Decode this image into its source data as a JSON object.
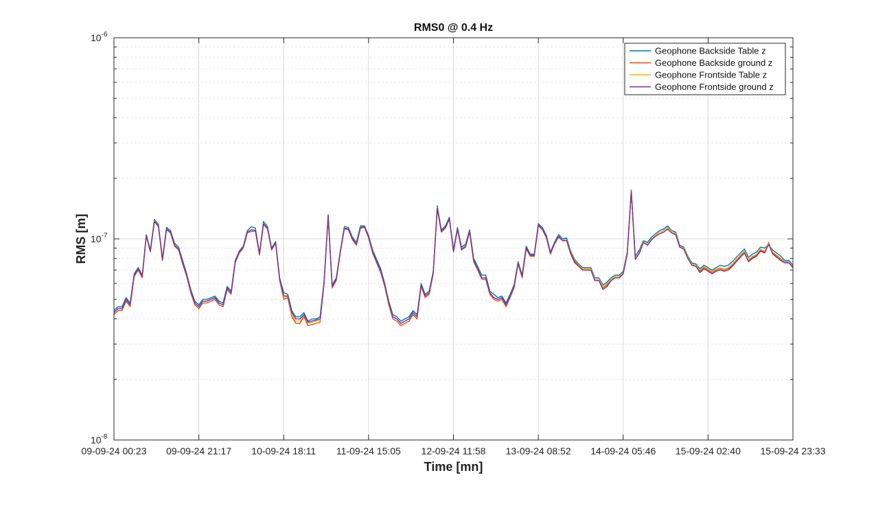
{
  "chart_data": {
    "type": "line",
    "title": "RMS0 @ 0.4 Hz",
    "xlabel": "Time [mn]",
    "ylabel": "RMS [m]",
    "yscale": "log",
    "ylim": [
      1e-08,
      1e-06
    ],
    "ytick_labels": [
      {
        "base": "10",
        "exp": "-8"
      },
      {
        "base": "10",
        "exp": "-7"
      },
      {
        "base": "10",
        "exp": "-6"
      }
    ],
    "x_tick_labels": [
      "09-09-24 00:23",
      "09-09-24 21:17",
      "10-09-24 18:11",
      "11-09-24 15:05",
      "12-09-24 11:58",
      "13-09-24 08:52",
      "14-09-24 05:46",
      "15-09-24 02:40",
      "15-09-24 23:33"
    ],
    "grid": true,
    "minor_grid": true,
    "legend_position": "top-right",
    "x_step_minutes": 60,
    "series": [
      {
        "name": "Geophone Backside Table z",
        "color": "#0072BD",
        "values": [
          4.4e-08,
          4.6e-08,
          4.6e-08,
          5.1e-08,
          4.8e-08,
          6.7e-08,
          7.2e-08,
          6.6e-08,
          1.05e-07,
          8.8e-08,
          1.25e-07,
          1.18e-07,
          8e-08,
          1.14e-07,
          1.1e-07,
          9.5e-08,
          9.1e-08,
          7.8e-08,
          6.7e-08,
          5.6e-08,
          4.9e-08,
          4.7e-08,
          5e-08,
          5e-08,
          5.1e-08,
          5.2e-08,
          4.9e-08,
          4.8e-08,
          5.8e-08,
          5.5e-08,
          7.8e-08,
          8.7e-08,
          9.2e-08,
          1.1e-07,
          1.15e-07,
          1.13e-07,
          8.5e-08,
          1.22e-07,
          1.15e-07,
          9e-08,
          9.7e-08,
          6.4e-08,
          5.4e-08,
          5.3e-08,
          4.4e-08,
          4.1e-08,
          4.1e-08,
          4.3e-08,
          3.9e-08,
          4e-08,
          4e-08,
          4.1e-08,
          6.2e-08,
          1.32e-07,
          5.9e-08,
          6.4e-08,
          8.7e-08,
          1.15e-07,
          1.14e-07,
          1.02e-07,
          9.6e-08,
          1.16e-07,
          1.16e-07,
          1.04e-07,
          8.8e-08,
          7.9e-08,
          7.1e-08,
          6e-08,
          4.9e-08,
          4.2e-08,
          4.1e-08,
          3.9e-08,
          4e-08,
          4.1e-08,
          4.4e-08,
          4.2e-08,
          6e-08,
          5.3e-08,
          5.5e-08,
          6.9e-08,
          1.46e-07,
          1.11e-07,
          1.16e-07,
          1.28e-07,
          8.8e-08,
          1.14e-07,
          9.1e-08,
          9.4e-08,
          1.11e-07,
          8e-08,
          7.3e-08,
          6.6e-08,
          6.6e-08,
          5.5e-08,
          5.3e-08,
          5.1e-08,
          5.2e-08,
          4.8e-08,
          5.3e-08,
          5.9e-08,
          7.7e-08,
          6.6e-08,
          9.2e-08,
          8.4e-08,
          8.4e-08,
          1.19e-07,
          1.14e-07,
          1.04e-07,
          8.6e-08,
          9.6e-08,
          1.05e-07,
          1e-07,
          1.01e-07,
          8.7e-08,
          7.9e-08,
          7.5e-08,
          7.2e-08,
          7.2e-08,
          7.2e-08,
          6.4e-08,
          6.4e-08,
          5.9e-08,
          6.1e-08,
          6.4e-08,
          6.6e-08,
          6.6e-08,
          6.9e-08,
          8.6e-08,
          1.75e-07,
          8.2e-08,
          8.8e-08,
          9.8e-08,
          9.6e-08,
          1.02e-07,
          1.06e-07,
          1.1e-07,
          1.12e-07,
          1.16e-07,
          1.1e-07,
          1.08e-07,
          9.3e-08,
          9.1e-08,
          8.2e-08,
          7.6e-08,
          7.5e-08,
          7.1e-08,
          7.4e-08,
          7.2e-08,
          7e-08,
          7.2e-08,
          7.4e-08,
          7.3e-08,
          7.4e-08,
          7.7e-08,
          8.1e-08,
          8.5e-08,
          8.9e-08,
          8.1e-08,
          8.4e-08,
          8.6e-08,
          9.1e-08,
          9e-08,
          9.4e-08,
          8.8e-08,
          8.5e-08,
          8.2e-08,
          7.8e-08,
          7.8e-08,
          7.4e-08
        ]
      },
      {
        "name": "Geophone Backside ground z",
        "color": "#D95319",
        "values": [
          4.2e-08,
          4.4e-08,
          4.4e-08,
          4.9e-08,
          4.6e-08,
          6.5e-08,
          7e-08,
          6.4e-08,
          1.03e-07,
          8.6e-08,
          1.22e-07,
          1.15e-07,
          7.8e-08,
          1.11e-07,
          1.07e-07,
          9.2e-08,
          8.8e-08,
          7.5e-08,
          6.5e-08,
          5.4e-08,
          4.7e-08,
          4.5e-08,
          4.8e-08,
          4.8e-08,
          4.9e-08,
          5e-08,
          4.7e-08,
          4.6e-08,
          5.6e-08,
          5.3e-08,
          7.6e-08,
          8.5e-08,
          9e-08,
          1.07e-07,
          1.09e-07,
          1.09e-07,
          8.3e-08,
          1.18e-07,
          1.12e-07,
          8.8e-08,
          9.5e-08,
          6.2e-08,
          5e-08,
          5.1e-08,
          4.1e-08,
          3.8e-08,
          3.8e-08,
          4.1e-08,
          3.7e-08,
          3.75e-08,
          3.8e-08,
          3.85e-08,
          6e-08,
          1.28e-07,
          5.7e-08,
          6.2e-08,
          8.5e-08,
          1.12e-07,
          1.11e-07,
          9.9e-08,
          9.3e-08,
          1.13e-07,
          1.14e-07,
          1.01e-07,
          8.5e-08,
          7.6e-08,
          6.8e-08,
          5.8e-08,
          4.7e-08,
          4e-08,
          3.9e-08,
          3.7e-08,
          3.8e-08,
          3.9e-08,
          4.2e-08,
          4e-08,
          5.8e-08,
          5.1e-08,
          5.3e-08,
          6.7e-08,
          1.41e-07,
          1.08e-07,
          1.13e-07,
          1.25e-07,
          8.6e-08,
          1.11e-07,
          8.8e-08,
          9.1e-08,
          1.08e-07,
          7.7e-08,
          7e-08,
          6.3e-08,
          6.3e-08,
          5.3e-08,
          5e-08,
          4.9e-08,
          5e-08,
          4.6e-08,
          5.1e-08,
          5.7e-08,
          7.5e-08,
          6.4e-08,
          8.9e-08,
          8.2e-08,
          8.2e-08,
          1.16e-07,
          1.11e-07,
          1.01e-07,
          8.4e-08,
          9.4e-08,
          1.02e-07,
          9.8e-08,
          9.8e-08,
          8.4e-08,
          7.6e-08,
          7.3e-08,
          7e-08,
          7e-08,
          7e-08,
          6.2e-08,
          6.2e-08,
          5.7e-08,
          5.9e-08,
          6.2e-08,
          6.4e-08,
          6.4e-08,
          6.7e-08,
          8.4e-08,
          1.72e-07,
          7.9e-08,
          8.5e-08,
          9.6e-08,
          9.3e-08,
          9.9e-08,
          1.03e-07,
          1.06e-07,
          1.08e-07,
          1.12e-07,
          1.07e-07,
          1.05e-07,
          9.1e-08,
          8.9e-08,
          8e-08,
          7.4e-08,
          7.3e-08,
          6.9e-08,
          7.2e-08,
          7e-08,
          6.8e-08,
          7e-08,
          7.1e-08,
          7e-08,
          7.1e-08,
          7.4e-08,
          7.8e-08,
          8.2e-08,
          8.6e-08,
          7.8e-08,
          8.1e-08,
          8.3e-08,
          8.8e-08,
          8.6e-08,
          9.6e-08,
          8.5e-08,
          8.2e-08,
          7.9e-08,
          7.6e-08,
          7.6e-08,
          7.2e-08
        ]
      },
      {
        "name": "Geophone Frontside Table z",
        "color": "#EDB120",
        "values": [
          4.3e-08,
          4.5e-08,
          4.5e-08,
          5e-08,
          4.7e-08,
          6.6e-08,
          7.1e-08,
          6.5e-08,
          1.04e-07,
          8.7e-08,
          1.23e-07,
          1.16e-07,
          7.9e-08,
          1.12e-07,
          1.08e-07,
          9.3e-08,
          8.9e-08,
          7.6e-08,
          6.6e-08,
          5.5e-08,
          4.8e-08,
          4.6e-08,
          4.9e-08,
          4.9e-08,
          5e-08,
          5.1e-08,
          4.8e-08,
          4.7e-08,
          5.7e-08,
          5.4e-08,
          7.7e-08,
          8.6e-08,
          9.1e-08,
          1.08e-07,
          1.11e-07,
          1.1e-07,
          8.4e-08,
          1.19e-07,
          1.13e-07,
          8.9e-08,
          9.6e-08,
          6.3e-08,
          5.1e-08,
          5.2e-08,
          4.2e-08,
          3.9e-08,
          3.9e-08,
          4.2e-08,
          3.8e-08,
          3.85e-08,
          3.9e-08,
          3.95e-08,
          6.1e-08,
          1.3e-07,
          5.8e-08,
          6.3e-08,
          8.6e-08,
          1.13e-07,
          1.12e-07,
          1e-07,
          9.4e-08,
          1.14e-07,
          1.15e-07,
          1.02e-07,
          8.6e-08,
          7.7e-08,
          6.9e-08,
          5.9e-08,
          4.8e-08,
          4.1e-08,
          4e-08,
          3.8e-08,
          3.9e-08,
          4e-08,
          4.3e-08,
          4.1e-08,
          5.9e-08,
          5.2e-08,
          5.4e-08,
          6.8e-08,
          1.43e-07,
          1.09e-07,
          1.14e-07,
          1.26e-07,
          8.7e-08,
          1.12e-07,
          8.9e-08,
          9.2e-08,
          1.09e-07,
          7.8e-08,
          7.1e-08,
          6.4e-08,
          6.4e-08,
          5.4e-08,
          5.1e-08,
          5e-08,
          5.1e-08,
          4.7e-08,
          5.2e-08,
          5.8e-08,
          7.6e-08,
          6.5e-08,
          9e-08,
          8.3e-08,
          8.3e-08,
          1.17e-07,
          1.12e-07,
          1.02e-07,
          8.5e-08,
          9.5e-08,
          1.03e-07,
          9.9e-08,
          9.9e-08,
          8.6e-08,
          7.8e-08,
          7.4e-08,
          7.1e-08,
          7.1e-08,
          7.1e-08,
          6.3e-08,
          6.3e-08,
          5.8e-08,
          6e-08,
          6.3e-08,
          6.5e-08,
          6.5e-08,
          6.8e-08,
          8.5e-08,
          1.73e-07,
          8e-08,
          8.6e-08,
          9.7e-08,
          9.4e-08,
          1e-07,
          1.04e-07,
          1.08e-07,
          1.1e-07,
          1.14e-07,
          1.09e-07,
          1.06e-07,
          9.2e-08,
          9e-08,
          8.1e-08,
          7.5e-08,
          7.4e-08,
          7e-08,
          7.3e-08,
          7.1e-08,
          6.9e-08,
          7.1e-08,
          7.2e-08,
          7.1e-08,
          7.2e-08,
          7.5e-08,
          7.9e-08,
          8.3e-08,
          8.7e-08,
          7.9e-08,
          8.2e-08,
          8.4e-08,
          8.9e-08,
          8.7e-08,
          9.5e-08,
          8.6e-08,
          8.3e-08,
          8e-08,
          7.7e-08,
          7.7e-08,
          7.3e-08
        ]
      },
      {
        "name": "Geophone Frontside ground z",
        "color": "#7E2F8E",
        "values": [
          4.3e-08,
          4.5e-08,
          4.5e-08,
          5e-08,
          4.7e-08,
          6.6e-08,
          7.1e-08,
          6.5e-08,
          1.04e-07,
          8.7e-08,
          1.22e-07,
          1.16e-07,
          7.9e-08,
          1.12e-07,
          1.08e-07,
          9.3e-08,
          8.9e-08,
          7.6e-08,
          6.6e-08,
          5.5e-08,
          4.8e-08,
          4.6e-08,
          4.9e-08,
          4.9e-08,
          5e-08,
          5.1e-08,
          4.8e-08,
          4.7e-08,
          5.7e-08,
          5.4e-08,
          7.7e-08,
          8.6e-08,
          9.1e-08,
          1.08e-07,
          1.11e-07,
          1.1e-07,
          8.4e-08,
          1.19e-07,
          1.13e-07,
          8.9e-08,
          9.6e-08,
          6.3e-08,
          5.2e-08,
          5.2e-08,
          4.3e-08,
          4e-08,
          4e-08,
          4.2e-08,
          3.85e-08,
          3.9e-08,
          3.95e-08,
          4e-08,
          6.1e-08,
          1.3e-07,
          5.8e-08,
          6.3e-08,
          8.6e-08,
          1.13e-07,
          1.12e-07,
          1e-07,
          9.4e-08,
          1.14e-07,
          1.15e-07,
          1.02e-07,
          8.6e-08,
          7.7e-08,
          6.9e-08,
          5.9e-08,
          4.8e-08,
          4.1e-08,
          4e-08,
          3.8e-08,
          3.9e-08,
          4e-08,
          4.3e-08,
          4.1e-08,
          5.9e-08,
          5.2e-08,
          5.4e-08,
          6.8e-08,
          1.42e-07,
          1.09e-07,
          1.14e-07,
          1.26e-07,
          8.7e-08,
          1.12e-07,
          8.9e-08,
          9.2e-08,
          1.09e-07,
          7.8e-08,
          7.1e-08,
          6.4e-08,
          6.4e-08,
          5.4e-08,
          5.1e-08,
          5e-08,
          5.1e-08,
          4.7e-08,
          5.2e-08,
          5.8e-08,
          7.6e-08,
          6.5e-08,
          9e-08,
          8.3e-08,
          8.3e-08,
          1.17e-07,
          1.12e-07,
          1.02e-07,
          8.5e-08,
          9.5e-08,
          1.03e-07,
          9.8e-08,
          9.8e-08,
          8.5e-08,
          7.7e-08,
          7.3e-08,
          7e-08,
          7e-08,
          7e-08,
          6.2e-08,
          6.2e-08,
          5.6e-08,
          5.8e-08,
          6.2e-08,
          6.4e-08,
          6.4e-08,
          6.7e-08,
          8.4e-08,
          1.72e-07,
          7.9e-08,
          8.5e-08,
          9.6e-08,
          9.3e-08,
          9.9e-08,
          1.03e-07,
          1.06e-07,
          1.08e-07,
          1.12e-07,
          1.07e-07,
          1.05e-07,
          9.1e-08,
          8.9e-08,
          8e-08,
          7.4e-08,
          7.3e-08,
          6.8e-08,
          7.1e-08,
          6.9e-08,
          6.7e-08,
          6.9e-08,
          7e-08,
          6.9e-08,
          7e-08,
          7.3e-08,
          7.7e-08,
          8.1e-08,
          8.5e-08,
          7.7e-08,
          8e-08,
          8.2e-08,
          8.7e-08,
          8.5e-08,
          9.4e-08,
          8.4e-08,
          8.1e-08,
          7.8e-08,
          7.6e-08,
          7.6e-08,
          7.2e-08
        ]
      }
    ]
  }
}
